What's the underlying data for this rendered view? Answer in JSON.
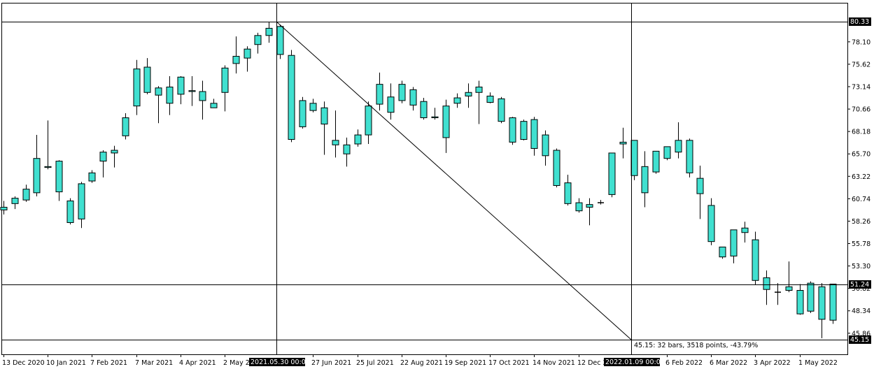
{
  "chart_data": {
    "type": "candlestick",
    "title": "",
    "timeframe": "weekly",
    "ylim": [
      45.15,
      80.33
    ],
    "y_ticks": [
      "80.33",
      "78.10",
      "75.62",
      "73.14",
      "70.66",
      "68.18",
      "65.70",
      "63.22",
      "60.74",
      "58.26",
      "55.78",
      "53.30",
      "50.82",
      "48.34",
      "45.86",
      "45.15"
    ],
    "x_ticks": [
      "13 Dec 2020",
      "10 Jan 2021",
      "7 Feb 2021",
      "7 Mar 2021",
      "4 Apr 2021",
      "2 May 2021",
      "2021.05.30 00:00",
      "27 Jun 2021",
      "25 Jul 2021",
      "22 Aug 2021",
      "19 Sep 2021",
      "17 Oct 2021",
      "14 Nov 2021",
      "12 Dec 2021",
      "2022.01.09 00:00",
      "6 Feb 2022",
      "6 Mar 2022",
      "3 Apr 2022",
      "1 May 2022"
    ],
    "series": [
      {
        "values": [
          [
            59.8,
            60.5,
            59.5,
            59.0
          ],
          [
            60.2,
            61.0,
            60.8,
            59.6
          ],
          [
            60.6,
            62.3,
            61.8,
            60.4
          ],
          [
            61.4,
            67.8,
            65.2,
            61.0
          ],
          [
            64.2,
            69.4,
            64.3,
            64.0
          ],
          [
            64.9,
            65.0,
            61.5,
            60.5
          ],
          [
            60.5,
            60.8,
            58.1,
            57.9
          ],
          [
            58.5,
            62.6,
            62.4,
            57.5
          ],
          [
            62.7,
            63.9,
            63.6,
            62.5
          ],
          [
            64.9,
            66.1,
            65.9,
            63.1
          ],
          [
            65.8,
            66.6,
            66.1,
            64.2
          ],
          [
            67.7,
            70.2,
            69.7,
            67.3
          ],
          [
            71.0,
            76.1,
            75.1,
            70.0
          ],
          [
            72.5,
            76.3,
            75.3,
            72.3
          ],
          [
            72.2,
            73.2,
            73.0,
            69.1
          ],
          [
            71.3,
            74.3,
            73.1,
            70.0
          ],
          [
            72.3,
            74.3,
            74.2,
            71.2
          ],
          [
            72.7,
            74.3,
            72.6,
            71.0
          ],
          [
            72.6,
            73.8,
            71.6,
            69.5
          ],
          [
            70.8,
            71.8,
            71.3,
            71.0
          ],
          [
            72.5,
            75.5,
            75.2,
            70.4
          ],
          [
            75.7,
            78.7,
            76.5,
            74.6
          ],
          [
            76.3,
            77.6,
            77.3,
            74.8
          ],
          [
            77.8,
            79.1,
            78.8,
            76.8
          ],
          [
            78.8,
            80.3,
            79.6,
            78.0
          ],
          [
            79.8,
            80.0,
            76.7,
            76.2
          ],
          [
            76.6,
            77.2,
            67.3,
            67.0
          ],
          [
            68.7,
            72.0,
            71.6,
            68.5
          ],
          [
            70.5,
            71.8,
            71.3,
            70.3
          ],
          [
            70.8,
            71.5,
            69.0,
            65.6
          ],
          [
            67.2,
            70.5,
            66.7,
            65.3
          ],
          [
            65.7,
            67.5,
            66.7,
            64.3
          ],
          [
            66.8,
            68.4,
            67.8,
            66.5
          ],
          [
            67.8,
            71.5,
            71.0,
            66.8
          ],
          [
            73.4,
            74.7,
            71.2,
            70.5
          ],
          [
            72.0,
            73.5,
            70.3,
            69.5
          ],
          [
            71.6,
            73.8,
            73.4,
            71.3
          ],
          [
            72.8,
            73.1,
            71.1,
            70.5
          ],
          [
            71.5,
            71.9,
            69.7,
            69.5
          ],
          [
            69.8,
            70.8,
            69.7,
            69.5
          ],
          [
            71.0,
            71.7,
            67.5,
            65.8
          ],
          [
            71.3,
            72.4,
            71.9,
            70.8
          ],
          [
            72.1,
            73.5,
            72.5,
            70.8
          ],
          [
            73.1,
            73.8,
            72.5,
            69.0
          ],
          [
            72.1,
            72.5,
            71.4,
            71.3
          ],
          [
            71.8,
            72.0,
            69.3,
            69.1
          ],
          [
            69.7,
            69.8,
            67.0,
            66.7
          ],
          [
            67.3,
            69.5,
            69.3,
            67.2
          ],
          [
            69.5,
            69.8,
            66.3,
            65.5
          ],
          [
            67.8,
            68.3,
            65.5,
            64.4
          ],
          [
            66.1,
            66.3,
            62.2,
            62.0
          ],
          [
            62.5,
            63.4,
            60.2,
            60.0
          ],
          [
            60.3,
            60.8,
            59.4,
            59.2
          ],
          [
            59.8,
            60.8,
            60.1,
            57.8
          ],
          [
            60.3,
            60.6,
            60.3,
            60.1
          ],
          [
            61.2,
            65.3,
            65.8,
            60.9
          ],
          [
            66.8,
            68.6,
            67.0,
            65.2
          ],
          [
            67.2,
            67.2,
            63.3,
            62.8
          ],
          [
            64.3,
            66.0,
            61.4,
            59.8
          ],
          [
            63.7,
            65.8,
            66.0,
            63.5
          ],
          [
            65.2,
            66.5,
            66.5,
            65.0
          ],
          [
            65.9,
            69.2,
            67.2,
            65.2
          ],
          [
            67.2,
            67.4,
            63.6,
            63.1
          ],
          [
            63.0,
            64.4,
            61.3,
            58.5
          ],
          [
            60.0,
            60.8,
            56.0,
            55.6
          ],
          [
            55.4,
            55.2,
            54.3,
            54.1
          ],
          [
            54.4,
            57.3,
            57.3,
            53.6
          ],
          [
            57.5,
            58.2,
            57.0,
            55.9
          ],
          [
            56.2,
            57.1,
            51.7,
            51.2
          ],
          [
            52.0,
            52.8,
            50.7,
            49.0
          ],
          [
            50.4,
            51.4,
            50.4,
            49.0
          ],
          [
            50.6,
            53.8,
            51.0,
            50.4
          ],
          [
            50.6,
            51.3,
            48.0,
            47.9
          ],
          [
            48.3,
            51.6,
            51.4,
            48.1
          ],
          [
            51.0,
            51.4,
            47.4,
            45.3
          ],
          [
            47.3,
            51.1,
            51.3,
            46.9
          ]
        ]
      }
    ],
    "crosshair_labels": {
      "price_high": "80.33",
      "price_mid": "51.24",
      "price_low": "45.15",
      "time_left": "2021.05.30 00:00",
      "time_right": "2022.01.09 00:00"
    },
    "measure_text": "45.15: 32 bars, 3518 points, -43.79%",
    "colors": {
      "bull": "#40E0D0",
      "bear": "#40E0D0",
      "wick": "#000000",
      "line": "#000000",
      "bg": "#ffffff"
    }
  }
}
